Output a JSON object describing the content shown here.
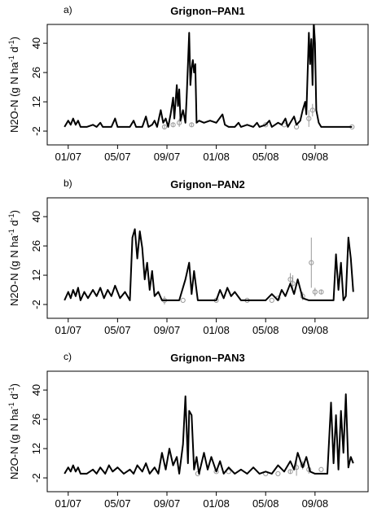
{
  "chart_data": [
    {
      "type": "line",
      "label": "a)",
      "title": "Grignon–PAN1",
      "ylabel": [
        {
          "text": "N2O-N (g N ha"
        },
        {
          "text": "-1",
          "sup": true
        },
        {
          "text": " d"
        },
        {
          "text": "-1",
          "sup": true
        },
        {
          "text": ")"
        }
      ],
      "xlim": [
        -1.7,
        24.3
      ],
      "ylim": [
        -8.6,
        49
      ],
      "xticks": [
        {
          "value": 0,
          "label": "01/07"
        },
        {
          "value": 4,
          "label": "05/07"
        },
        {
          "value": 8,
          "label": "09/07"
        },
        {
          "value": 12,
          "label": "01/08"
        },
        {
          "value": 16,
          "label": "05/08"
        },
        {
          "value": 20,
          "label": "09/08"
        }
      ],
      "yticks": [
        -2,
        12,
        26,
        40
      ],
      "x": [
        -0.3,
        0,
        0.2,
        0.4,
        0.6,
        0.8,
        1,
        1.5,
        2,
        2.3,
        2.6,
        2.8,
        3.5,
        3.8,
        4,
        5,
        5.3,
        5.5,
        6,
        6.3,
        6.5,
        6.8,
        7,
        7.2,
        7.5,
        7.7,
        7.9,
        8.1,
        8.3,
        8.5,
        8.6,
        8.8,
        8.9,
        9,
        9.1,
        9.3,
        9.5,
        9.6,
        9.8,
        9.9,
        10,
        10.1,
        10.2,
        10.3,
        10.4,
        10.6,
        11,
        11.5,
        12,
        12.5,
        12.7,
        13,
        13.5,
        13.8,
        14,
        14.5,
        15,
        15.3,
        15.5,
        16,
        16.3,
        16.5,
        17,
        17.3,
        17.6,
        17.8,
        18,
        18.3,
        18.5,
        18.8,
        19,
        19.2,
        19.3,
        19.5,
        19.6,
        19.7,
        19.8,
        19.9,
        20,
        20.1,
        20.3,
        20.5,
        22,
        23
      ],
      "series": [
        {
          "color": "#000000",
          "values": [
            0,
            3,
            1,
            4,
            1,
            3,
            0,
            0,
            1,
            0,
            2,
            0,
            0,
            4,
            0,
            0,
            3,
            0,
            0,
            5,
            0,
            1,
            3,
            0,
            8,
            2,
            4,
            0,
            6,
            14,
            4,
            20,
            10,
            18,
            3,
            8,
            2,
            14,
            45,
            20,
            28,
            32,
            26,
            30,
            2,
            3,
            2,
            3,
            2,
            6,
            1,
            0,
            0,
            2,
            0,
            1,
            0,
            2,
            0,
            1,
            3,
            0,
            2,
            1,
            4,
            0,
            2,
            5,
            1,
            3,
            8,
            12,
            6,
            45,
            30,
            42,
            20,
            50,
            40,
            8,
            2,
            0,
            0,
            0
          ]
        }
      ],
      "points": {
        "color": "#999999",
        "x": [
          7.8,
          8.5,
          9,
          10,
          16,
          17.5,
          18.5,
          19.5,
          19.8,
          23
        ],
        "values": [
          0,
          1,
          2,
          1,
          1,
          1,
          0,
          4,
          8,
          0
        ],
        "errors": [
          1,
          1,
          2,
          1,
          0,
          0,
          0,
          4,
          3,
          0
        ]
      }
    },
    {
      "type": "line",
      "label": "b)",
      "title": "Grignon–PAN2",
      "ylabel": [
        {
          "text": "N2O-N (g N ha"
        },
        {
          "text": "-1",
          "sup": true
        },
        {
          "text": " d"
        },
        {
          "text": "-1",
          "sup": true
        },
        {
          "text": ")"
        }
      ],
      "xlim": [
        -1.7,
        24.3
      ],
      "ylim": [
        -8.6,
        49
      ],
      "xticks": [
        {
          "value": 0,
          "label": "01/07"
        },
        {
          "value": 4,
          "label": "05/07"
        },
        {
          "value": 8,
          "label": "09/07"
        },
        {
          "value": 12,
          "label": "01/08"
        },
        {
          "value": 16,
          "label": "05/08"
        },
        {
          "value": 20,
          "label": "09/08"
        }
      ],
      "yticks": [
        -2,
        12,
        26,
        40
      ],
      "x": [
        -0.3,
        0,
        0.2,
        0.4,
        0.6,
        0.8,
        1,
        1.3,
        1.6,
        2,
        2.3,
        2.6,
        2.9,
        3.2,
        3.5,
        3.8,
        4.2,
        4.6,
        5,
        5.2,
        5.4,
        5.6,
        5.8,
        6,
        6.2,
        6.4,
        6.6,
        6.8,
        7,
        7.3,
        7.6,
        8,
        9,
        9.5,
        9.8,
        10,
        10.2,
        10.5,
        11,
        12,
        12.3,
        12.6,
        12.9,
        13.2,
        13.5,
        14,
        15,
        16,
        16.5,
        17,
        17.3,
        17.6,
        18,
        18.3,
        18.6,
        19,
        19.5,
        20,
        21.5,
        21.7,
        21.9,
        22.1,
        22.3,
        22.5,
        22.7,
        22.9,
        23.1
      ],
      "series": [
        {
          "color": "#000000",
          "values": [
            0,
            4,
            1,
            5,
            2,
            6,
            0,
            4,
            1,
            5,
            2,
            6,
            1,
            5,
            2,
            7,
            1,
            4,
            0,
            30,
            34,
            20,
            33,
            25,
            10,
            18,
            5,
            14,
            2,
            4,
            0,
            0,
            0,
            10,
            18,
            3,
            14,
            0,
            0,
            0,
            5,
            1,
            6,
            2,
            4,
            0,
            0,
            0,
            3,
            0,
            5,
            2,
            8,
            3,
            10,
            1,
            0,
            0,
            0,
            22,
            5,
            18,
            0,
            2,
            30,
            20,
            4
          ]
        }
      ],
      "points": {
        "color": "#999999",
        "x": [
          7.8,
          9.3,
          12,
          14.5,
          16.5,
          17,
          18,
          18.2,
          19,
          19.7,
          20,
          20.5
        ],
        "values": [
          0,
          0,
          0,
          0,
          0,
          1,
          10,
          8,
          2,
          18,
          4,
          4
        ],
        "errors": [
          2,
          0,
          0,
          0,
          0,
          0,
          3,
          4,
          2,
          12,
          2,
          1
        ]
      }
    },
    {
      "type": "line",
      "label": "c)",
      "title": "Grignon–PAN3",
      "ylabel": [
        {
          "text": "N2O-N (g N ha"
        },
        {
          "text": "-1",
          "sup": true
        },
        {
          "text": " d"
        },
        {
          "text": "-1",
          "sup": true
        },
        {
          "text": ")"
        }
      ],
      "xlim": [
        -1.7,
        24.3
      ],
      "ylim": [
        -8.6,
        49
      ],
      "xticks": [
        {
          "value": 0,
          "label": "01/07"
        },
        {
          "value": 4,
          "label": "05/07"
        },
        {
          "value": 8,
          "label": "09/07"
        },
        {
          "value": 12,
          "label": "01/08"
        },
        {
          "value": 16,
          "label": "05/08"
        },
        {
          "value": 20,
          "label": "09/08"
        }
      ],
      "yticks": [
        -2,
        12,
        26,
        40
      ],
      "x": [
        -0.3,
        0,
        0.2,
        0.4,
        0.6,
        0.8,
        1,
        1.5,
        2,
        2.3,
        2.6,
        3,
        3.3,
        3.6,
        4,
        4.5,
        5,
        5.3,
        5.6,
        6,
        6.3,
        6.6,
        7,
        7.3,
        7.6,
        7.9,
        8.2,
        8.5,
        8.8,
        9,
        9.3,
        9.5,
        9.7,
        9.8,
        10,
        10.2,
        10.4,
        10.6,
        11,
        11.3,
        11.6,
        12,
        12.3,
        12.6,
        13,
        13.5,
        14,
        14.5,
        15,
        15.5,
        16,
        16.5,
        17,
        17.5,
        18,
        18.3,
        18.6,
        19,
        19.3,
        19.6,
        20,
        21,
        21.3,
        21.5,
        21.7,
        21.9,
        22.1,
        22.3,
        22.5,
        22.7,
        22.9,
        23.1
      ],
      "series": [
        {
          "color": "#000000",
          "values": [
            0,
            3,
            1,
            4,
            1,
            3,
            0,
            0,
            2,
            0,
            3,
            0,
            4,
            1,
            3,
            0,
            2,
            0,
            4,
            1,
            5,
            0,
            3,
            0,
            10,
            2,
            12,
            4,
            8,
            0,
            14,
            37,
            5,
            30,
            28,
            2,
            8,
            0,
            10,
            2,
            8,
            1,
            6,
            0,
            3,
            0,
            2,
            0,
            3,
            0,
            1,
            0,
            4,
            1,
            6,
            2,
            10,
            3,
            8,
            1,
            0,
            0,
            34,
            5,
            28,
            2,
            30,
            10,
            38,
            3,
            8,
            5
          ]
        }
      ],
      "points": {
        "color": "#999999",
        "x": [
          10.5,
          12,
          13,
          16,
          17,
          18,
          18.5,
          19,
          19.5,
          20.5
        ],
        "values": [
          0,
          1,
          1,
          0,
          0,
          1,
          3,
          4,
          2,
          2
        ],
        "errors": [
          0,
          0,
          0,
          0,
          0,
          1,
          4,
          2,
          2,
          0
        ]
      }
    }
  ]
}
